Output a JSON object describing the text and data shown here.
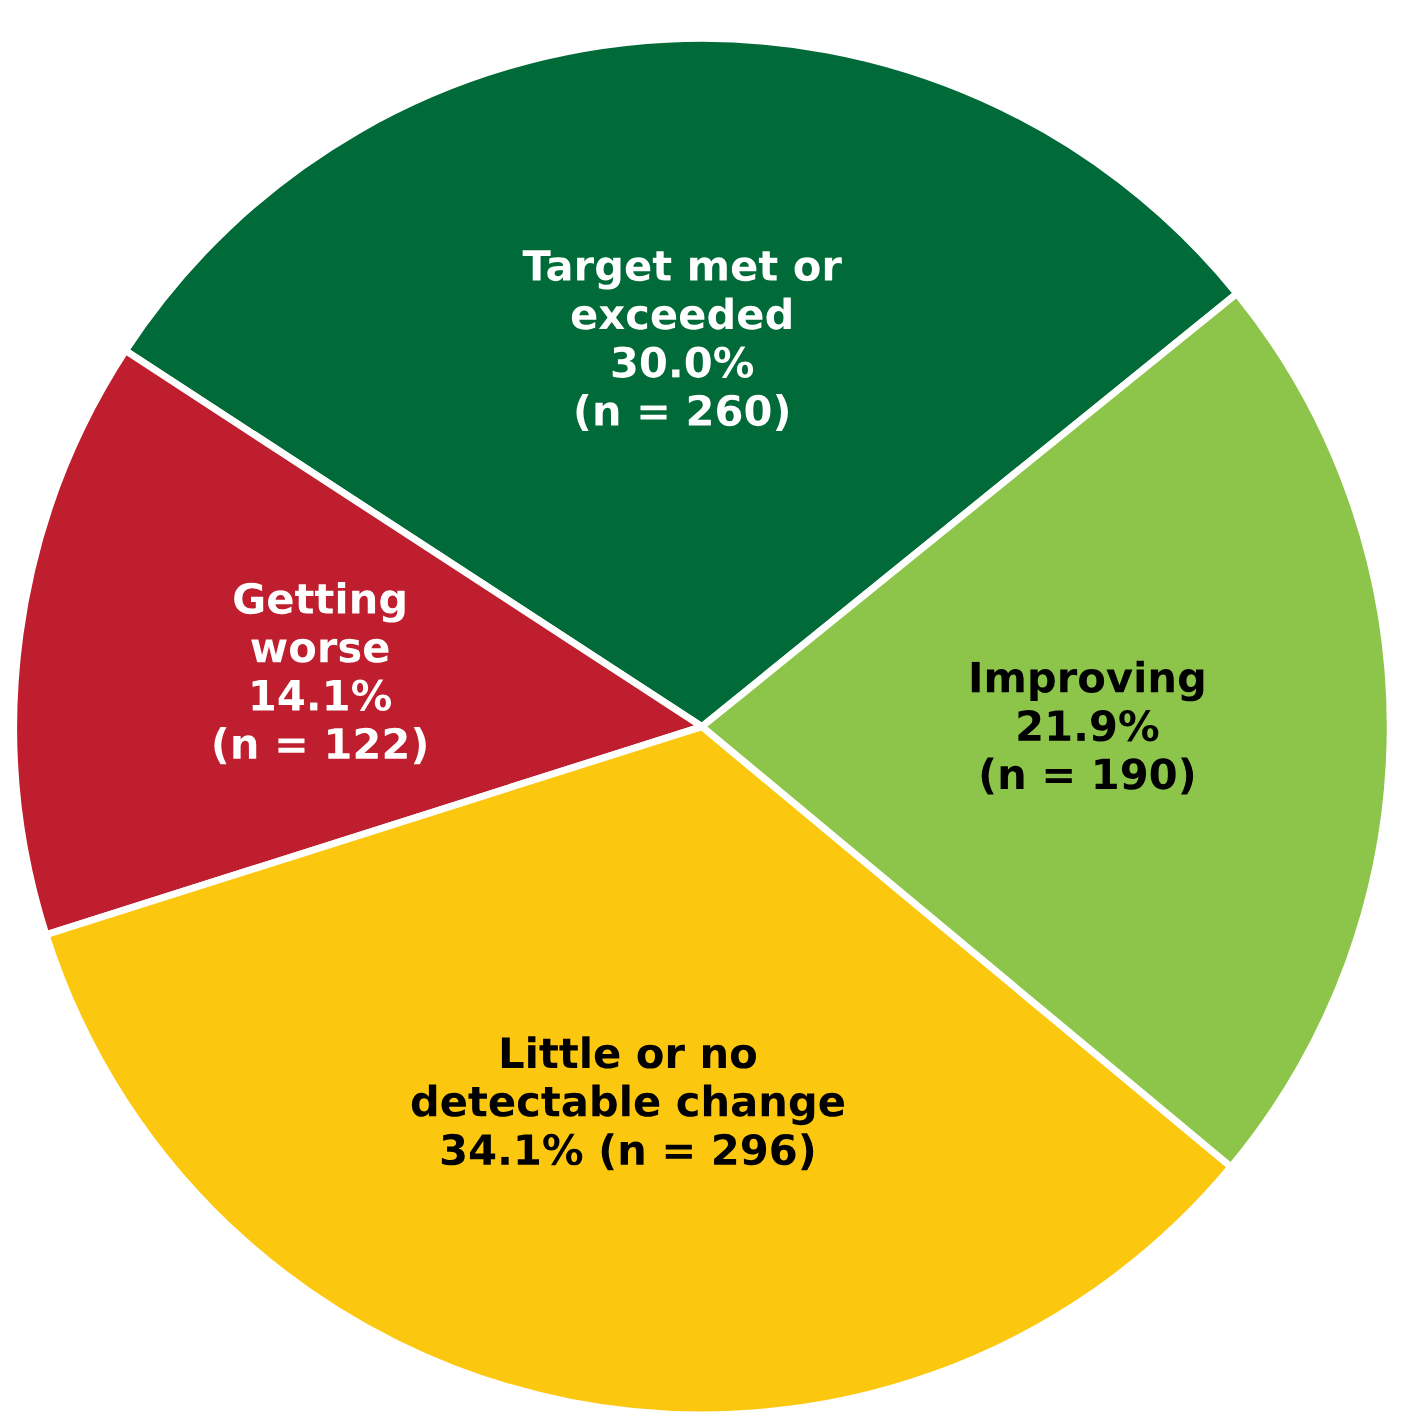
{
  "chart_data": {
    "type": "pie",
    "categories": [
      "Target met or\nexceeded",
      "Getting\nworse",
      "Little or no\ndetectable change",
      "Improving"
    ],
    "values": [
      30.0,
      14.1,
      34.1,
      21.9
    ],
    "value_labels": [
      "30.0%\n(n = 260)",
      "14.1%\n(n = 122)",
      "34.1% (n = 296)",
      "21.9%\n(n = 190)"
    ],
    "colors": [
      "#006b38",
      "#be1e2d",
      "#fcc70f",
      "#8dc54b"
    ]
  }
}
